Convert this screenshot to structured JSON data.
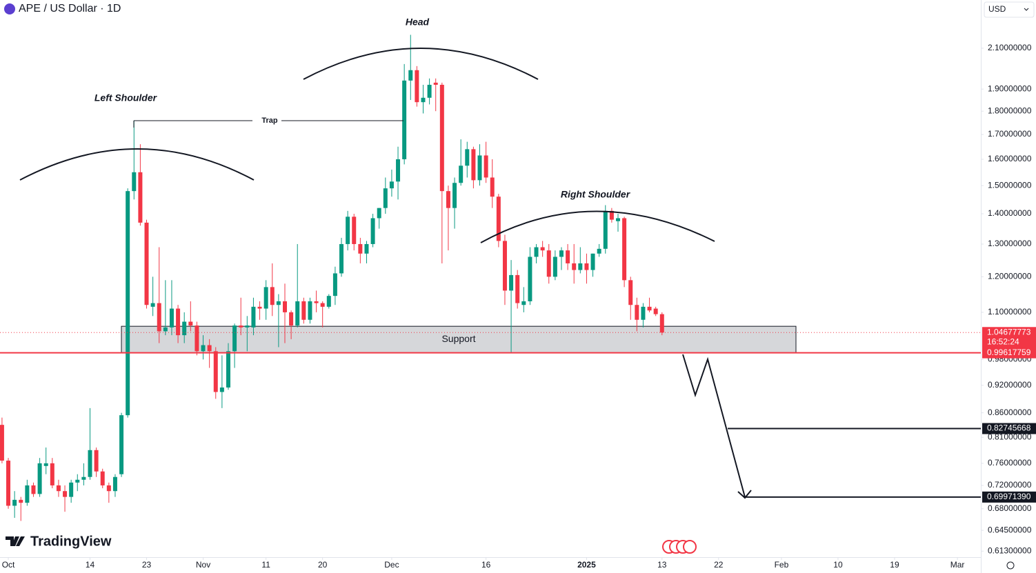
{
  "chart_data": {
    "type": "candlestick",
    "title": "APE / US Dollar · 1D",
    "currency": "USD",
    "brand": "TradingView",
    "up_color": "#089981",
    "down_color": "#f23645",
    "log_scale": true,
    "grid": false,
    "x": [
      -1,
      0,
      1,
      2,
      3,
      4,
      5,
      6,
      7,
      8,
      9,
      10,
      11,
      12,
      13,
      14,
      15,
      16,
      17,
      18,
      19,
      20,
      21,
      22,
      23,
      24,
      25,
      26,
      27,
      28,
      29,
      30,
      31,
      32,
      33,
      34,
      35,
      36,
      37,
      38,
      39,
      40,
      41,
      42,
      43,
      44,
      45,
      46,
      47,
      48,
      49,
      50,
      51,
      52,
      53,
      54,
      55,
      56,
      57,
      58,
      59,
      60,
      61,
      62,
      63,
      64,
      65,
      66,
      67,
      68,
      69,
      70,
      71,
      72,
      73,
      74,
      75,
      76,
      77,
      78,
      79,
      80,
      81,
      82,
      83,
      84,
      85,
      86,
      87,
      88,
      89,
      90,
      91,
      92,
      93,
      94,
      95,
      96,
      97,
      98,
      99,
      100,
      101,
      102,
      103,
      104
    ],
    "open": [
      0.835,
      0.765,
      0.685,
      0.695,
      0.69,
      0.72,
      0.705,
      0.755,
      0.76,
      0.72,
      0.71,
      0.7,
      0.725,
      0.73,
      0.735,
      0.785,
      0.745,
      0.72,
      0.71,
      0.74,
      0.855,
      1.48,
      1.55,
      1.37,
      1.115,
      1.125,
      1.05,
      1.06,
      1.11,
      1.04,
      1.075,
      1.065,
      1.0,
      1.015,
      1.0,
      0.905,
      0.915,
      1.0,
      1.065,
      1.06,
      1.06,
      1.115,
      1.11,
      1.17,
      1.12,
      1.13,
      1.1,
      1.065,
      1.13,
      1.08,
      1.13,
      1.125,
      1.115,
      1.145,
      1.21,
      1.3,
      1.39,
      1.3,
      1.27,
      1.3,
      1.385,
      1.42,
      1.49,
      1.515,
      1.6,
      1.94,
      1.99,
      1.84,
      1.86,
      1.93,
      1.92,
      1.48,
      1.42,
      1.51,
      1.575,
      1.64,
      1.52,
      1.615,
      1.53,
      1.46,
      1.31,
      1.16,
      1.205,
      1.12,
      1.13,
      1.26,
      1.29,
      1.28,
      1.2,
      1.26,
      1.28,
      1.24,
      1.22,
      1.24,
      1.22,
      1.27,
      1.285,
      1.41,
      1.375,
      1.385,
      1.19,
      1.12,
      1.08,
      1.115,
      1.11,
      1.095
    ],
    "high": [
      0.85,
      0.77,
      0.71,
      0.7,
      0.73,
      0.725,
      0.77,
      0.79,
      0.77,
      0.73,
      0.72,
      0.73,
      0.74,
      0.76,
      0.87,
      0.79,
      0.75,
      0.725,
      0.74,
      0.86,
      1.49,
      1.76,
      1.66,
      1.38,
      1.2,
      1.29,
      1.19,
      1.19,
      1.12,
      1.1,
      1.13,
      1.075,
      1.04,
      1.03,
      1.01,
      0.99,
      1.02,
      1.07,
      1.14,
      1.09,
      1.14,
      1.13,
      1.19,
      1.24,
      1.15,
      1.18,
      1.105,
      1.3,
      1.14,
      1.14,
      1.16,
      1.13,
      1.15,
      1.23,
      1.32,
      1.41,
      1.4,
      1.32,
      1.31,
      1.4,
      1.42,
      1.53,
      1.56,
      1.65,
      2.02,
      2.17,
      2.01,
      1.92,
      1.95,
      1.95,
      1.93,
      1.5,
      1.53,
      1.68,
      1.67,
      1.65,
      1.66,
      1.67,
      1.6,
      1.47,
      1.33,
      1.25,
      1.22,
      1.17,
      1.29,
      1.3,
      1.31,
      1.3,
      1.28,
      1.29,
      1.3,
      1.3,
      1.29,
      1.27,
      1.27,
      1.3,
      1.43,
      1.42,
      1.4,
      1.39,
      1.2,
      1.14,
      1.125,
      1.14,
      1.115,
      1.1
    ],
    "low": [
      0.76,
      0.68,
      0.665,
      0.66,
      0.685,
      0.7,
      0.7,
      0.74,
      0.715,
      0.7,
      0.675,
      0.69,
      0.71,
      0.72,
      0.73,
      0.735,
      0.715,
      0.69,
      0.7,
      0.735,
      0.85,
      1.45,
      1.36,
      1.11,
      1.09,
      1.02,
      1.04,
      1.04,
      1.02,
      1.02,
      1.05,
      0.99,
      0.98,
      0.96,
      0.89,
      0.87,
      0.91,
      0.96,
      1.04,
      1.0,
      1.04,
      1.08,
      1.08,
      1.09,
      1.01,
      1.02,
      1.03,
      1.06,
      1.07,
      1.07,
      1.1,
      1.06,
      1.11,
      1.12,
      1.2,
      1.28,
      1.28,
      1.24,
      1.24,
      1.29,
      1.35,
      1.4,
      1.46,
      1.45,
      1.58,
      1.85,
      1.82,
      1.79,
      1.83,
      1.8,
      1.24,
      1.28,
      1.35,
      1.5,
      1.53,
      1.49,
      1.5,
      1.51,
      1.42,
      1.29,
      1.12,
      0.995,
      1.11,
      1.1,
      1.12,
      1.24,
      1.26,
      1.18,
      1.19,
      1.22,
      1.22,
      1.18,
      1.21,
      1.18,
      1.2,
      1.26,
      1.27,
      1.37,
      1.34,
      1.17,
      1.08,
      1.05,
      1.06,
      1.1,
      1.09,
      1.04
    ],
    "close": [
      0.765,
      0.685,
      0.695,
      0.69,
      0.72,
      0.705,
      0.76,
      0.76,
      0.72,
      0.71,
      0.7,
      0.725,
      0.73,
      0.735,
      0.785,
      0.745,
      0.72,
      0.71,
      0.735,
      0.855,
      1.48,
      1.55,
      1.37,
      1.12,
      1.125,
      1.05,
      1.06,
      1.11,
      1.04,
      1.075,
      1.065,
      1.0,
      1.015,
      1.0,
      0.905,
      0.915,
      1.0,
      1.065,
      1.06,
      1.065,
      1.115,
      1.11,
      1.17,
      1.12,
      1.13,
      1.1,
      1.065,
      1.13,
      1.08,
      1.13,
      1.125,
      1.115,
      1.145,
      1.21,
      1.3,
      1.39,
      1.3,
      1.27,
      1.3,
      1.385,
      1.42,
      1.49,
      1.515,
      1.6,
      1.94,
      1.99,
      1.84,
      1.86,
      1.92,
      1.92,
      1.48,
      1.42,
      1.51,
      1.575,
      1.64,
      1.52,
      1.615,
      1.53,
      1.46,
      1.31,
      1.16,
      1.205,
      1.125,
      1.13,
      1.26,
      1.29,
      1.28,
      1.2,
      1.26,
      1.28,
      1.24,
      1.22,
      1.24,
      1.22,
      1.27,
      1.285,
      1.41,
      1.38,
      1.385,
      1.19,
      1.12,
      1.08,
      1.115,
      1.105,
      1.095,
      1.04677773
    ],
    "xlim": [
      -1.32,
      154.72
    ],
    "xticks": [
      {
        "value": 0,
        "label": "Oct"
      },
      {
        "value": 13,
        "label": "14"
      },
      {
        "value": 22,
        "label": "23"
      },
      {
        "value": 31,
        "label": "Nov"
      },
      {
        "value": 41,
        "label": "11"
      },
      {
        "value": 50,
        "label": "20"
      },
      {
        "value": 61,
        "label": "Dec"
      },
      {
        "value": 76,
        "label": "16"
      },
      {
        "value": 92,
        "label": "2025"
      },
      {
        "value": 104,
        "label": "13"
      },
      {
        "value": 113,
        "label": "22"
      },
      {
        "value": 123,
        "label": "Feb"
      },
      {
        "value": 132,
        "label": "10"
      },
      {
        "value": 141,
        "label": "19"
      },
      {
        "value": 151,
        "label": "Mar"
      }
    ],
    "ylim": [
      0.604,
      2.363
    ],
    "yticks": [
      {
        "value": 2.1,
        "label": "2.10000000"
      },
      {
        "value": 1.9,
        "label": "1.90000000"
      },
      {
        "value": 1.8,
        "label": "1.80000000"
      },
      {
        "value": 1.7,
        "label": "1.70000000"
      },
      {
        "value": 1.6,
        "label": "1.60000000"
      },
      {
        "value": 1.5,
        "label": "1.50000000"
      },
      {
        "value": 1.4,
        "label": "1.40000000"
      },
      {
        "value": 1.3,
        "label": "1.30000000"
      },
      {
        "value": 1.2,
        "label": "1.20000000"
      },
      {
        "value": 1.1,
        "label": "1.10000000"
      },
      {
        "value": 0.98,
        "label": "0.98000000"
      },
      {
        "value": 0.92,
        "label": "0.92000000"
      },
      {
        "value": 0.86,
        "label": "0.86000000"
      },
      {
        "value": 0.81,
        "label": "0.81000000"
      },
      {
        "value": 0.76,
        "label": "0.76000000"
      },
      {
        "value": 0.72,
        "label": "0.72000000"
      },
      {
        "value": 0.68,
        "label": "0.68000000"
      },
      {
        "value": 0.645,
        "label": "0.64500000"
      },
      {
        "value": 0.613,
        "label": "0.61300000"
      }
    ],
    "current_price": {
      "value": 1.04677773,
      "countdown": "16:52:24"
    },
    "price_lines": [
      {
        "value": 0.99617759,
        "color": "#f23645"
      },
      {
        "value": 0.82745668,
        "color": "#131722"
      },
      {
        "value": 0.6997139,
        "label": "0.69971390",
        "color": "#131722"
      }
    ],
    "support": {
      "label": "Support",
      "top": 1.063,
      "bottom": 0.996
    },
    "annotations": {
      "left_shoulder": "Left Shoulder",
      "head": "Head",
      "right_shoulder": "Right Shoulder",
      "trap": "Trap"
    }
  }
}
